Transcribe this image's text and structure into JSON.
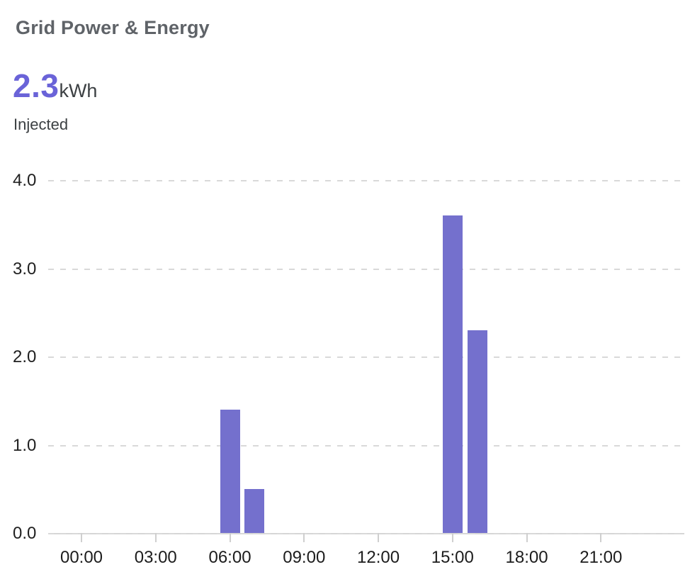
{
  "header": {
    "title": "Grid Power & Energy",
    "value": "2.3",
    "unit": "kWh",
    "label": "Injected"
  },
  "colors": {
    "bar": "#7470cd",
    "headline_value": "#6a63d8",
    "title_text": "#5f6368",
    "dark_text": "#3c4043",
    "axis_label": "#1f1f1f",
    "gridline": "#d9d9d9",
    "axis_line": "#d6d6d6"
  },
  "chart_data": {
    "type": "bar",
    "title": "Grid Power & Energy",
    "series_name": "Injected",
    "unit": "kWh",
    "x": [
      "00:00",
      "01:00",
      "02:00",
      "03:00",
      "04:00",
      "05:00",
      "06:00",
      "07:00",
      "08:00",
      "09:00",
      "10:00",
      "11:00",
      "12:00",
      "13:00",
      "14:00",
      "15:00",
      "16:00",
      "17:00",
      "18:00",
      "19:00",
      "20:00",
      "21:00",
      "22:00",
      "23:00"
    ],
    "values": [
      0,
      0,
      0,
      0,
      0,
      0,
      1.4,
      0.5,
      0,
      0,
      0,
      0,
      0,
      0,
      0,
      3.6,
      2.3,
      0,
      0,
      0,
      0,
      0,
      0,
      0
    ],
    "x_tick_labels": [
      "00:00",
      "03:00",
      "06:00",
      "09:00",
      "12:00",
      "15:00",
      "18:00",
      "21:00"
    ],
    "y_ticks": [
      0.0,
      1.0,
      2.0,
      3.0,
      4.0
    ],
    "ylim": [
      0,
      4.2
    ],
    "xlabel": "",
    "ylabel": "",
    "grid": "horizontal-dashed",
    "legend_position": "none",
    "bar_color": "#7470cd"
  }
}
